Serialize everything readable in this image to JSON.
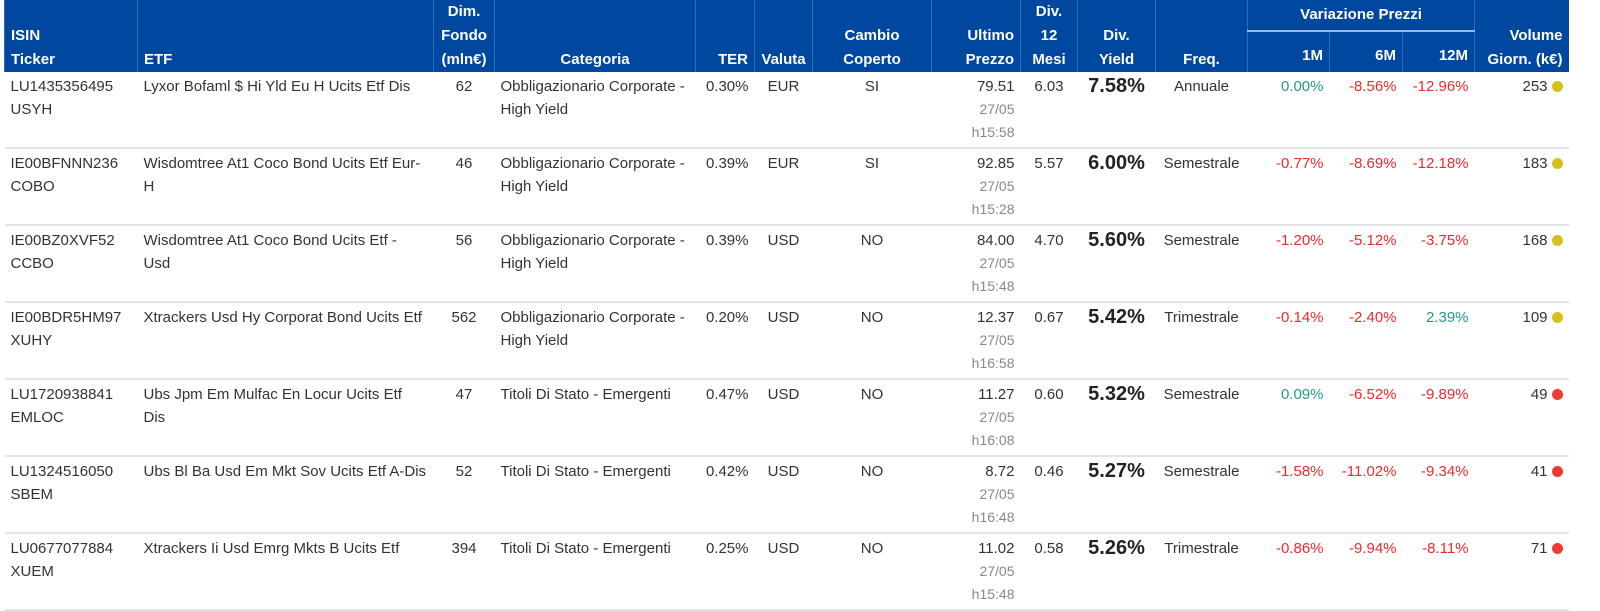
{
  "headers": {
    "isin": "ISIN",
    "ticker": "Ticker",
    "etf": "ETF",
    "dim1": "Dim.",
    "dim2": "Fondo",
    "dim3": "(mln€)",
    "categoria": "Categoria",
    "ter": "TER",
    "valuta": "Valuta",
    "cambio1": "Cambio",
    "cambio2": "Coperto",
    "ultimo1": "Ultimo",
    "ultimo2": "Prezzo",
    "div1": "Div. 12",
    "div2": "Mesi",
    "yield1": "Div.",
    "yield2": "Yield",
    "freq": "Freq.",
    "variazione": "Variazione Prezzi",
    "m1": "1M",
    "m6": "6M",
    "m12": "12M",
    "vol1": "Volume",
    "vol2": "Giorn. (k€)"
  },
  "colors": {
    "header": "#0047a0",
    "positive": "#1f9a8c",
    "negative": "#f02a2a",
    "dot_yellow": "#d4c21a",
    "dot_red": "#ef3b36"
  },
  "rows": [
    {
      "isin": "LU1435356495",
      "ticker": "USYH",
      "etf": "Lyxor Bofaml $ Hi Yld Eu H Ucits Etf Dis",
      "dim": "62",
      "categoria": "Obbligazionario Corporate - High Yield",
      "ter": "0.30%",
      "valuta": "EUR",
      "cambio": "SI",
      "prezzo": "79.51",
      "data": "27/05",
      "ora": "h15:58",
      "div": "6.03",
      "yield": "7.58%",
      "freq": "Annuale",
      "m1": "0.00%",
      "m6": "-8.56%",
      "m12": "-12.96%",
      "vol": "253",
      "dot": "yellow"
    },
    {
      "isin": "IE00BFNNN236",
      "ticker": "COBO",
      "etf": "Wisdomtree At1 Coco Bond Ucits Etf Eur-H",
      "dim": "46",
      "categoria": "Obbligazionario Corporate - High Yield",
      "ter": "0.39%",
      "valuta": "EUR",
      "cambio": "SI",
      "prezzo": "92.85",
      "data": "27/05",
      "ora": "h15:28",
      "div": "5.57",
      "yield": "6.00%",
      "freq": "Semestrale",
      "m1": "-0.77%",
      "m6": "-8.69%",
      "m12": "-12.18%",
      "vol": "183",
      "dot": "yellow"
    },
    {
      "isin": "IE00BZ0XVF52",
      "ticker": "CCBO",
      "etf": "Wisdomtree At1 Coco Bond Ucits Etf - Usd",
      "dim": "56",
      "categoria": "Obbligazionario Corporate - High Yield",
      "ter": "0.39%",
      "valuta": "USD",
      "cambio": "NO",
      "prezzo": "84.00",
      "data": "27/05",
      "ora": "h15:48",
      "div": "4.70",
      "yield": "5.60%",
      "freq": "Semestrale",
      "m1": "-1.20%",
      "m6": "-5.12%",
      "m12": "-3.75%",
      "vol": "168",
      "dot": "yellow"
    },
    {
      "isin": "IE00BDR5HM97",
      "ticker": "XUHY",
      "etf": "Xtrackers Usd Hy Corporat Bond Ucits Etf",
      "dim": "562",
      "categoria": "Obbligazionario Corporate - High Yield",
      "ter": "0.20%",
      "valuta": "USD",
      "cambio": "NO",
      "prezzo": "12.37",
      "data": "27/05",
      "ora": "h16:58",
      "div": "0.67",
      "yield": "5.42%",
      "freq": "Trimestrale",
      "m1": "-0.14%",
      "m6": "-2.40%",
      "m12": "2.39%",
      "vol": "109",
      "dot": "yellow"
    },
    {
      "isin": "LU1720938841",
      "ticker": "EMLOC",
      "etf": "Ubs Jpm Em Mulfac En Locur Ucits Etf Dis",
      "dim": "47",
      "categoria": "Titoli Di Stato - Emergenti",
      "ter": "0.47%",
      "valuta": "USD",
      "cambio": "NO",
      "prezzo": "11.27",
      "data": "27/05",
      "ora": "h16:08",
      "div": "0.60",
      "yield": "5.32%",
      "freq": "Semestrale",
      "m1": "0.09%",
      "m6": "-6.52%",
      "m12": "-9.89%",
      "vol": "49",
      "dot": "red"
    },
    {
      "isin": "LU1324516050",
      "ticker": "SBEM",
      "etf": "Ubs Bl Ba Usd Em Mkt Sov Ucits Etf A-Dis",
      "dim": "52",
      "categoria": "Titoli Di Stato - Emergenti",
      "ter": "0.42%",
      "valuta": "USD",
      "cambio": "NO",
      "prezzo": "8.72",
      "data": "27/05",
      "ora": "h16:48",
      "div": "0.46",
      "yield": "5.27%",
      "freq": "Semestrale",
      "m1": "-1.58%",
      "m6": "-11.02%",
      "m12": "-9.34%",
      "vol": "41",
      "dot": "red"
    },
    {
      "isin": "LU0677077884",
      "ticker": "XUEM",
      "etf": "Xtrackers Ii Usd Emrg Mkts B Ucits Etf",
      "dim": "394",
      "categoria": "Titoli Di Stato - Emergenti",
      "ter": "0.25%",
      "valuta": "USD",
      "cambio": "NO",
      "prezzo": "11.02",
      "data": "27/05",
      "ora": "h15:48",
      "div": "0.58",
      "yield": "5.26%",
      "freq": "Trimestrale",
      "m1": "-0.86%",
      "m6": "-9.94%",
      "m12": "-8.11%",
      "vol": "71",
      "dot": "red"
    }
  ]
}
